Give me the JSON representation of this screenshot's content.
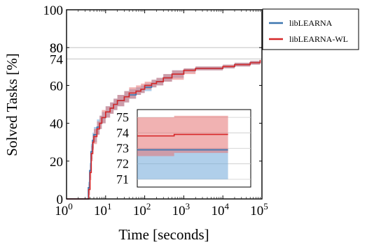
{
  "chart_data": {
    "type": "line",
    "xlabel": "Time [seconds]",
    "ylabel": "Solved Tasks [%]",
    "xscale": "log",
    "xlim": [
      1,
      100000
    ],
    "ylim": [
      0,
      100
    ],
    "xticks": [
      {
        "value": 1,
        "base": "10",
        "exp": "0"
      },
      {
        "value": 10,
        "base": "10",
        "exp": "1"
      },
      {
        "value": 100,
        "base": "10",
        "exp": "2"
      },
      {
        "value": 1000,
        "base": "10",
        "exp": "3"
      },
      {
        "value": 10000,
        "base": "10",
        "exp": "4"
      },
      {
        "value": 100000,
        "base": "10",
        "exp": "5"
      }
    ],
    "yticks": [
      0,
      20,
      40,
      60,
      80,
      100
    ],
    "reference_lines": [
      {
        "y": 74,
        "label": "74"
      },
      {
        "y": 80,
        "label": "80"
      }
    ],
    "legend_position": "outside-top-right",
    "series": [
      {
        "name": "libLEARNA",
        "color": "#3b75af",
        "band_color": "#6fa8d8",
        "x": [
          1,
          3.2,
          3.6,
          3.9,
          4.2,
          4.6,
          5,
          6,
          7,
          8,
          10,
          13,
          16,
          20,
          30,
          40,
          60,
          80,
          100,
          150,
          200,
          300,
          500,
          1000,
          2000,
          5000,
          10000,
          20000,
          50000,
          90000
        ],
        "y": [
          0,
          0,
          6,
          15,
          25,
          31,
          34,
          38,
          40,
          43,
          46,
          48,
          50,
          52,
          54,
          55,
          57,
          58,
          59,
          61,
          62,
          64,
          66,
          68,
          69,
          69,
          70,
          71,
          72,
          73
        ],
        "lower": [
          0,
          0,
          3,
          11,
          21,
          27,
          30,
          34,
          37,
          40,
          43,
          45,
          47,
          49,
          51,
          53,
          55,
          56,
          57,
          59,
          60,
          62,
          64,
          67,
          68,
          68,
          69,
          70,
          71,
          71.5
        ],
        "upper": [
          0,
          0,
          9,
          19,
          29,
          35,
          38,
          42,
          44,
          46,
          49,
          51,
          53,
          55,
          57,
          58,
          59,
          60,
          61,
          63,
          64,
          66,
          68,
          69,
          70,
          70,
          71,
          72,
          73,
          74
        ]
      },
      {
        "name": "libLEARNA-WL",
        "color": "#d62728",
        "band_color": "#e57373",
        "x": [
          1,
          3.3,
          3.7,
          4,
          4.3,
          4.7,
          5,
          6,
          7,
          8,
          10,
          13,
          16,
          20,
          30,
          40,
          60,
          80,
          100,
          150,
          200,
          300,
          500,
          1000,
          2000,
          5000,
          10000,
          20000,
          50000,
          90000
        ],
        "y": [
          0,
          0,
          5,
          14,
          24,
          30,
          33,
          37,
          40,
          43,
          46,
          48,
          50,
          52,
          54,
          56,
          57,
          58,
          60,
          61,
          62,
          64,
          66,
          68,
          69,
          69,
          70,
          71,
          72,
          73.5
        ],
        "lower": [
          0,
          0,
          2,
          10,
          20,
          26,
          29,
          34,
          37,
          40,
          43,
          45,
          47,
          49,
          51,
          53,
          55,
          56,
          58,
          59,
          60,
          62,
          63,
          66,
          68,
          68,
          69,
          70,
          71,
          72.5
        ],
        "upper": [
          0,
          0,
          8,
          18,
          28,
          34,
          37,
          41,
          44,
          47,
          49,
          51,
          53,
          55,
          57,
          59,
          60,
          61,
          62,
          63,
          64,
          66,
          68,
          69,
          70,
          70,
          71,
          72,
          73,
          74.5
        ]
      }
    ],
    "inset": {
      "ylim": [
        70.5,
        75.5
      ],
      "xlim": [
        1000,
        100000
      ],
      "yticks": [
        71,
        72,
        73,
        74,
        75
      ],
      "series": [
        {
          "name": "libLEARNA",
          "x": [
            1000,
            100000
          ],
          "y": [
            72.9,
            72.9
          ],
          "lower": [
            71.0,
            71.0
          ],
          "upper": [
            73.0,
            73.0
          ]
        },
        {
          "name": "libLEARNA-WL",
          "x": [
            1000,
            3000,
            5000,
            6500,
            80000,
            100000
          ],
          "y": [
            73.8,
            73.8,
            73.8,
            73.9,
            73.9,
            73.9
          ],
          "lower": [
            72.5,
            72.5,
            72.5,
            72.7,
            72.7,
            72.7
          ],
          "upper": [
            75.0,
            75.0,
            75.0,
            75.1,
            75.1,
            75.1
          ]
        }
      ]
    }
  }
}
